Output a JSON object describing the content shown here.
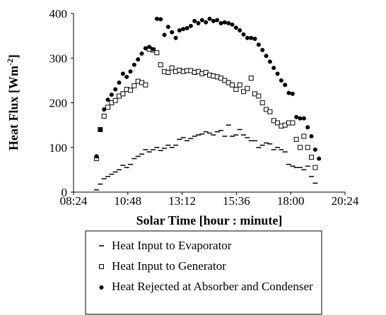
{
  "chart_data": {
    "type": "scatter",
    "xlabel": "Solar Time [hour : minute]",
    "ylabel": [
      "Heat Flux [Wm",
      "-2",
      "]"
    ],
    "x": [
      565,
      575,
      585,
      595,
      605,
      615,
      625,
      635,
      645,
      655,
      665,
      675,
      685,
      695,
      705,
      715,
      725,
      735,
      745,
      755,
      765,
      775,
      785,
      795,
      805,
      815,
      825,
      835,
      845,
      855,
      865,
      875,
      885,
      895,
      905,
      915,
      925,
      935,
      945,
      955,
      965,
      975,
      985,
      995,
      1005,
      1015,
      1025,
      1035,
      1045,
      1055,
      1065,
      1075,
      1085,
      1095,
      1105,
      1115,
      1125,
      1135,
      1145,
      1155
    ],
    "series": [
      {
        "name": "Heat Input to Evaporator",
        "color": "#000000",
        "marker": "dash",
        "values": [
          5,
          18,
          30,
          35,
          40,
          45,
          50,
          60,
          55,
          62,
          75,
          80,
          85,
          95,
          90,
          95,
          100,
          93,
          98,
          105,
          100,
          105,
          118,
          122,
          115,
          120,
          125,
          128,
          130,
          135,
          132,
          128,
          135,
          138,
          125,
          150,
          125,
          128,
          140,
          128,
          122,
          115,
          115,
          100,
          105,
          110,
          108,
          95,
          100,
          95,
          90,
          62,
          58,
          55,
          55,
          50,
          58,
          35,
          20,
          null
        ]
      },
      {
        "name": "Heat Input to Generator",
        "color": "#000000",
        "marker": "square",
        "values": [
          75,
          140,
          170,
          190,
          200,
          205,
          215,
          220,
          230,
          228,
          238,
          248,
          245,
          240,
          320,
          318,
          312,
          285,
          270,
          268,
          278,
          270,
          273,
          270,
          272,
          272,
          268,
          270,
          265,
          268,
          262,
          260,
          258,
          255,
          250,
          245,
          240,
          230,
          240,
          225,
          232,
          255,
          220,
          215,
          200,
          185,
          180,
          160,
          155,
          148,
          150,
          155,
          155,
          118,
          100,
          125,
          100,
          78,
          55,
          null
        ]
      },
      {
        "name": "Heat Rejected at Absorber and Condenser",
        "color": "#000000",
        "marker": "circle",
        "values": [
          80,
          140,
          185,
          207,
          218,
          230,
          245,
          265,
          258,
          270,
          285,
          297,
          310,
          322,
          325,
          320,
          388,
          387,
          352,
          370,
          358,
          345,
          362,
          365,
          367,
          372,
          383,
          378,
          385,
          380,
          388,
          383,
          385,
          378,
          380,
          378,
          375,
          368,
          362,
          353,
          345,
          345,
          343,
          330,
          318,
          305,
          292,
          278,
          265,
          250,
          240,
          222,
          220,
          168,
          165,
          165,
          145,
          125,
          95,
          75
        ]
      }
    ],
    "xlim": [
      504,
      1224
    ],
    "xticks": [
      {
        "value": 504,
        "label": "08:24"
      },
      {
        "value": 648,
        "label": "10:48"
      },
      {
        "value": 792,
        "label": "13:12"
      },
      {
        "value": 936,
        "label": "15:36"
      },
      {
        "value": 1080,
        "label": "18:00"
      },
      {
        "value": 1224,
        "label": "20:24"
      }
    ],
    "ylim": [
      0,
      400
    ],
    "yticks": [
      0,
      100,
      200,
      300,
      400
    ],
    "grid": false
  }
}
